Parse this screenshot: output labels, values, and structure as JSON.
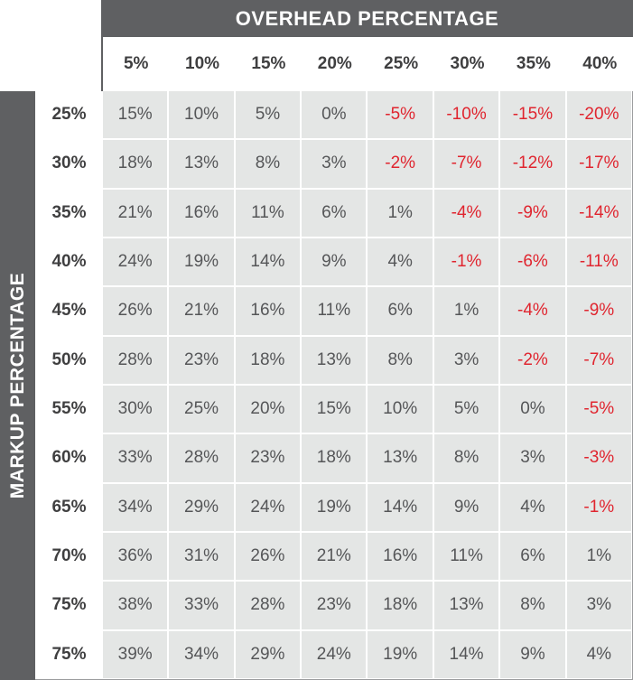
{
  "title_top": "OVERHEAD PERCENTAGE",
  "title_side": "MARKUP PERCENTAGE",
  "columns": [
    "5%",
    "10%",
    "15%",
    "20%",
    "25%",
    "30%",
    "35%",
    "40%"
  ],
  "rows": [
    {
      "label": "25%",
      "cells": [
        "15%",
        "10%",
        "5%",
        "0%",
        "-5%",
        "-10%",
        "-15%",
        "-20%"
      ]
    },
    {
      "label": "30%",
      "cells": [
        "18%",
        "13%",
        "8%",
        "3%",
        "-2%",
        "-7%",
        "-12%",
        "-17%"
      ]
    },
    {
      "label": "35%",
      "cells": [
        "21%",
        "16%",
        "11%",
        "6%",
        "1%",
        "-4%",
        "-9%",
        "-14%"
      ]
    },
    {
      "label": "40%",
      "cells": [
        "24%",
        "19%",
        "14%",
        "9%",
        "4%",
        "-1%",
        "-6%",
        "-11%"
      ]
    },
    {
      "label": "45%",
      "cells": [
        "26%",
        "21%",
        "16%",
        "11%",
        "6%",
        "1%",
        "-4%",
        "-9%"
      ]
    },
    {
      "label": "50%",
      "cells": [
        "28%",
        "23%",
        "18%",
        "13%",
        "8%",
        "3%",
        "-2%",
        "-7%"
      ]
    },
    {
      "label": "55%",
      "cells": [
        "30%",
        "25%",
        "20%",
        "15%",
        "10%",
        "5%",
        "0%",
        "-5%"
      ]
    },
    {
      "label": "60%",
      "cells": [
        "33%",
        "28%",
        "23%",
        "18%",
        "13%",
        "8%",
        "3%",
        "-3%"
      ]
    },
    {
      "label": "65%",
      "cells": [
        "34%",
        "29%",
        "24%",
        "19%",
        "14%",
        "9%",
        "4%",
        "-1%"
      ]
    },
    {
      "label": "70%",
      "cells": [
        "36%",
        "31%",
        "26%",
        "21%",
        "16%",
        "11%",
        "6%",
        "1%"
      ]
    },
    {
      "label": "75%",
      "cells": [
        "38%",
        "33%",
        "28%",
        "23%",
        "18%",
        "13%",
        "8%",
        "3%"
      ]
    },
    {
      "label": "75%",
      "cells": [
        "39%",
        "34%",
        "29%",
        "24%",
        "19%",
        "14%",
        "9%",
        "4%"
      ]
    }
  ],
  "colors": {
    "band": "#5f6062",
    "cell_bg": "#e4e6e5",
    "text": "#555658",
    "negative": "#e0252f",
    "header_text": "#3f3f40"
  }
}
